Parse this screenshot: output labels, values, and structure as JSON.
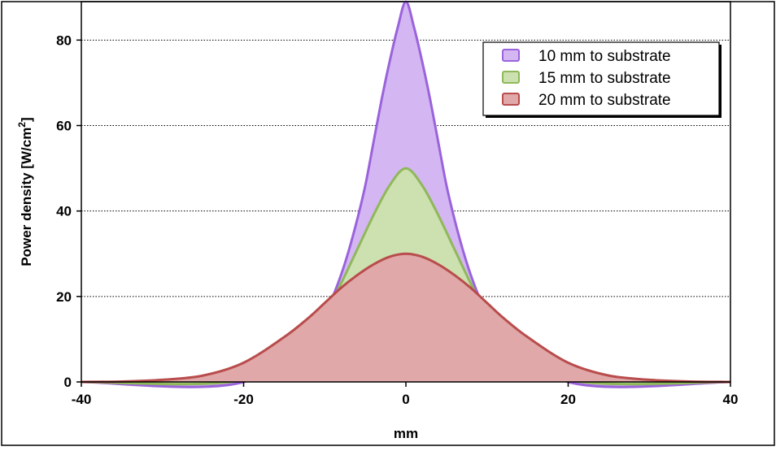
{
  "chart_data": {
    "type": "area",
    "title": "",
    "xlabel": "mm",
    "ylabel": "Power density [W/cm",
    "ylabel_sup": "2",
    "ylabel_tail": "]",
    "xlim": [
      -40,
      40
    ],
    "ylim": [
      0,
      89
    ],
    "xticks": [
      -40,
      -20,
      0,
      20,
      40
    ],
    "yticks": [
      0,
      20,
      40,
      60,
      80
    ],
    "grid": "horizontal-dotted",
    "legend_position": "top-right",
    "series": [
      {
        "name": "10 mm to substrate",
        "fill": "#d4b6f2",
        "stroke": "#9a63db",
        "x": [
          -40,
          -20,
          -10,
          -9,
          -8,
          -7,
          -6,
          -5,
          -4,
          -3,
          -2,
          -1,
          0,
          1,
          2,
          3,
          4,
          5,
          6,
          7,
          8,
          9,
          10,
          20,
          40
        ],
        "y": [
          0,
          0,
          16,
          20,
          25,
          31,
          38,
          46,
          56,
          66,
          75,
          83,
          89,
          83,
          75,
          66,
          56,
          46,
          38,
          31,
          25,
          20,
          16,
          0,
          0
        ]
      },
      {
        "name": "15 mm to substrate",
        "fill": "#cde0b0",
        "stroke": "#8fb85a",
        "x": [
          -40,
          -20,
          -12,
          -10,
          -9,
          -8,
          -6,
          -4,
          -2,
          0,
          2,
          4,
          6,
          8,
          9,
          10,
          12,
          20,
          40
        ],
        "y": [
          0,
          0.5,
          12,
          17,
          19.5,
          23,
          31,
          39,
          46,
          50,
          46,
          39,
          31,
          23,
          19.5,
          17,
          12,
          0.5,
          0
        ]
      },
      {
        "name": "20 mm to substrate",
        "fill": "#e0a8a8",
        "stroke": "#b94c4c",
        "x": [
          -40,
          -35,
          -30,
          -25,
          -20,
          -15,
          -12,
          -10,
          -8,
          -6,
          -4,
          -2,
          0,
          2,
          4,
          6,
          8,
          10,
          12,
          15,
          20,
          25,
          30,
          35,
          40
        ],
        "y": [
          0,
          0.1,
          0.5,
          1.5,
          4.5,
          10.5,
          15,
          18.5,
          22,
          25,
          27.5,
          29.3,
          30,
          29.3,
          27.5,
          25,
          22,
          18.5,
          15,
          10.5,
          4.5,
          1.5,
          0.5,
          0.1,
          0
        ]
      }
    ]
  }
}
